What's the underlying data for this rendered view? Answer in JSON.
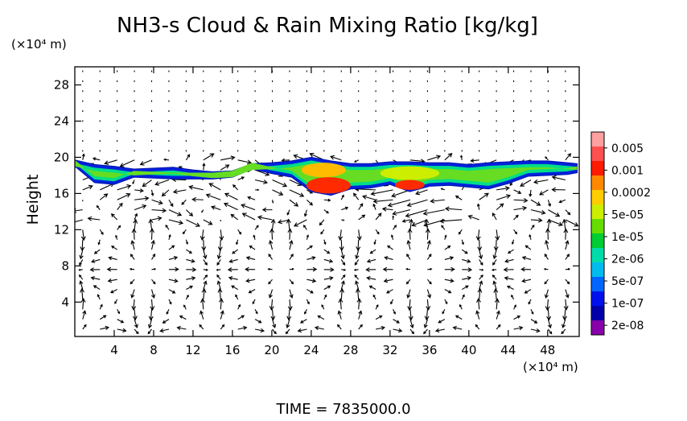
{
  "chart_data": {
    "type": "heatmap",
    "title": "NH3-s Cloud & Rain Mixing Ratio [kg/kg]",
    "ylabel": "Height",
    "x_unit_label": "(×10⁴ m)",
    "y_unit_label": "(×10⁴ m)",
    "x_ticks": [
      4,
      8,
      12,
      16,
      20,
      24,
      28,
      32,
      36,
      40,
      44,
      48
    ],
    "y_ticks": [
      4,
      8,
      12,
      16,
      20,
      24,
      28
    ],
    "xlim": [
      0,
      51.2
    ],
    "ylim": [
      0.2,
      30
    ],
    "grid": false,
    "legend_position": "right",
    "colorbar": {
      "labels": [
        "0.005",
        "0.001",
        "0.0002",
        "5e-05",
        "1e-05",
        "2e-06",
        "5e-07",
        "1e-07",
        "2e-08"
      ],
      "colors": [
        "#ffa0a0",
        "#ff5050",
        "#ff1a00",
        "#ff8800",
        "#ffcc00",
        "#ccee00",
        "#66dd00",
        "#00cc33",
        "#00ddaa",
        "#00bbee",
        "#0066ff",
        "#0011ee",
        "#0000aa",
        "#8800aa"
      ]
    },
    "cloud_layer": {
      "x": [
        0,
        2,
        4,
        6,
        8,
        10,
        12,
        14,
        16,
        18,
        20,
        22,
        24,
        26,
        28,
        30,
        32,
        34,
        36,
        38,
        40,
        42,
        44,
        46,
        48,
        50,
        51
      ],
      "top": [
        19.7,
        19.2,
        19.0,
        18.7,
        18.8,
        18.9,
        18.6,
        18.4,
        18.5,
        19.3,
        19.4,
        19.6,
        20.0,
        19.6,
        19.3,
        19.3,
        19.5,
        19.5,
        19.4,
        19.4,
        19.2,
        19.4,
        19.5,
        19.6,
        19.6,
        19.4,
        19.3
      ],
      "bottom": [
        19.0,
        17.2,
        17.0,
        17.8,
        17.7,
        17.6,
        17.6,
        17.6,
        17.8,
        18.7,
        18.2,
        17.8,
        16.2,
        15.8,
        16.5,
        16.6,
        17.0,
        16.2,
        16.8,
        16.9,
        16.7,
        16.5,
        17.1,
        17.9,
        18.0,
        18.1,
        18.3
      ]
    },
    "core_regions": [
      {
        "x_range": [
          23.5,
          28.0
        ],
        "y_range": [
          16.0,
          17.8
        ],
        "value": "0.001"
      },
      {
        "x_range": [
          32.5,
          35.5
        ],
        "y_range": [
          16.4,
          17.5
        ],
        "value": "0.001"
      },
      {
        "x_range": [
          23.0,
          27.5
        ],
        "y_range": [
          17.8,
          19.4
        ],
        "value": "0.0002"
      },
      {
        "x_range": [
          31.0,
          37.0
        ],
        "y_range": [
          17.5,
          19.0
        ],
        "value": "5e-05"
      }
    ]
  },
  "footer": {
    "time_label": "TIME  =  7835000.0"
  }
}
